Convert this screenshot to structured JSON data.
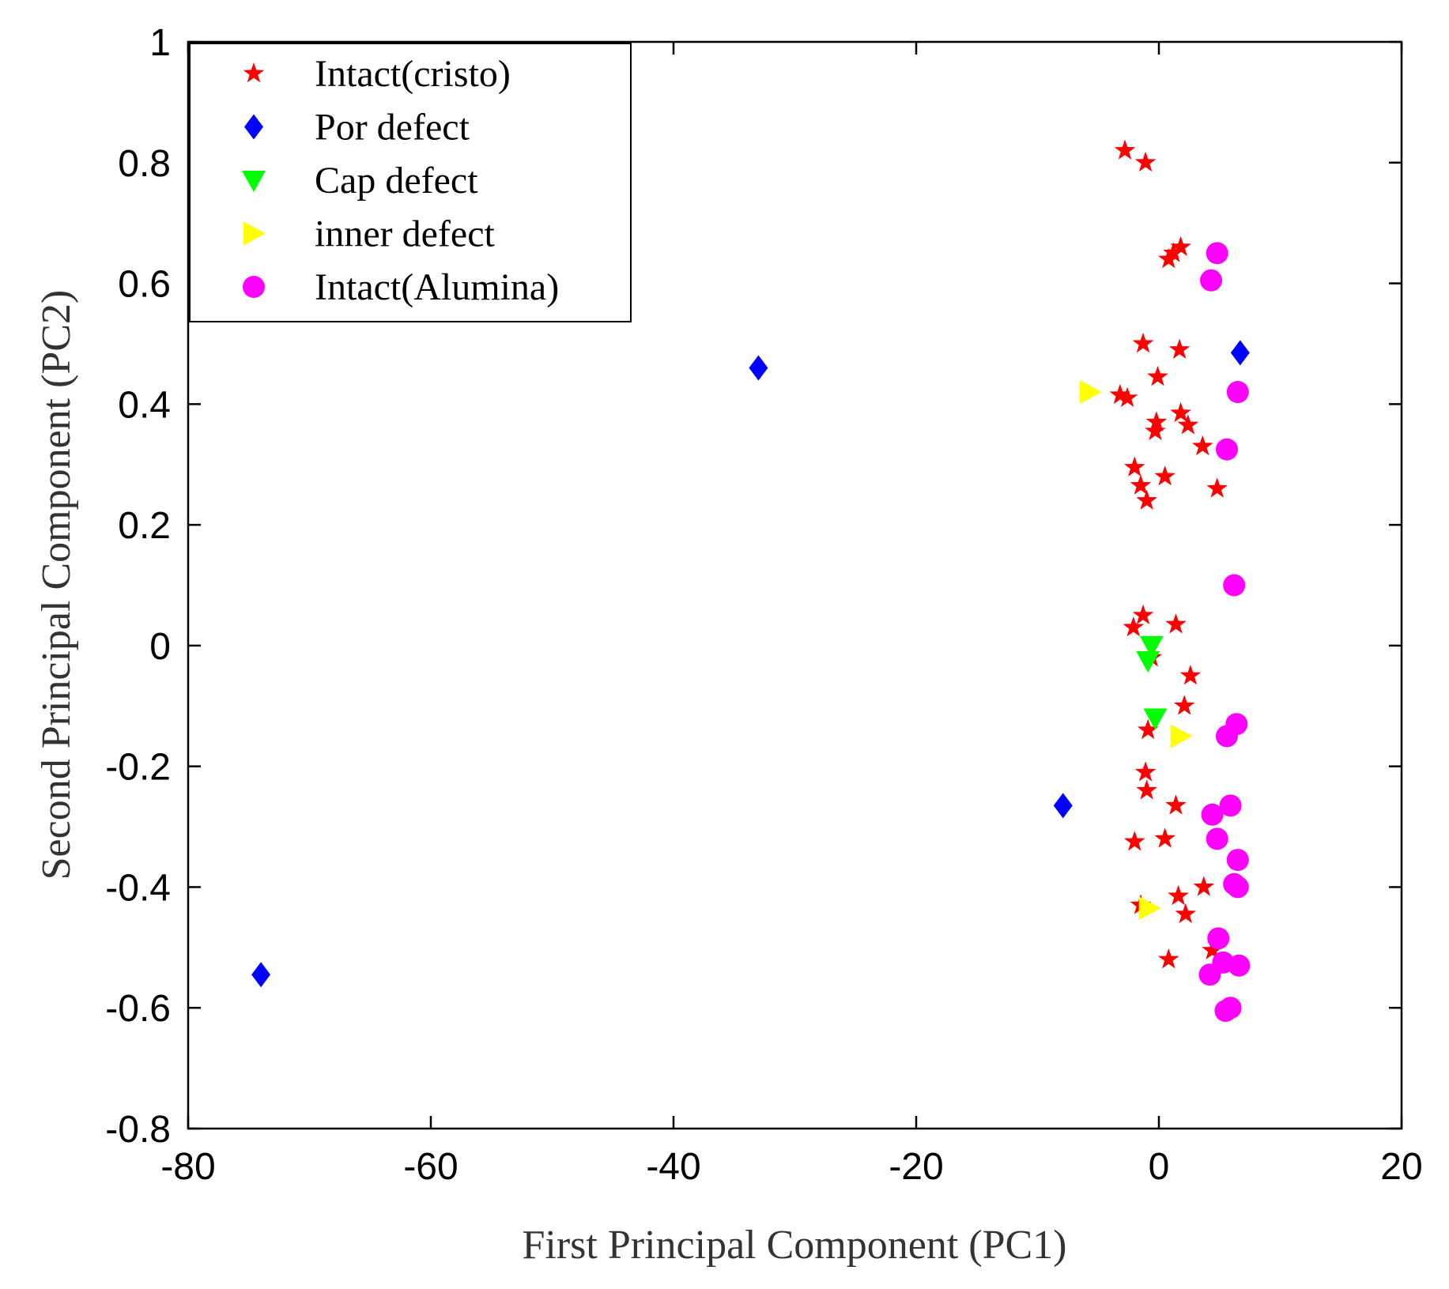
{
  "chart_data": {
    "type": "scatter",
    "title": "",
    "xlabel": "First Principal Component (PC1)",
    "ylabel": "Second Principal Component (PC2)",
    "xlim": [
      -80,
      20
    ],
    "ylim": [
      -0.8,
      1
    ],
    "xticks": [
      -80,
      -60,
      -40,
      -20,
      0,
      20
    ],
    "yticks": [
      -0.8,
      -0.6,
      -0.4,
      -0.2,
      0,
      0.2,
      0.4,
      0.6,
      0.8,
      1
    ],
    "legend_position": "top-left",
    "series": [
      {
        "name": "Intact(cristo)",
        "marker": "star",
        "color": "#ff0000",
        "points": [
          [
            -2.8,
            0.82
          ],
          [
            -1.1,
            0.8
          ],
          [
            1.8,
            0.66
          ],
          [
            1.2,
            0.65
          ],
          [
            0.8,
            0.64
          ],
          [
            -1.3,
            0.5
          ],
          [
            1.7,
            0.49
          ],
          [
            -0.1,
            0.445
          ],
          [
            -3.2,
            0.415
          ],
          [
            -2.6,
            0.41
          ],
          [
            1.8,
            0.385
          ],
          [
            2.4,
            0.365
          ],
          [
            -0.2,
            0.37
          ],
          [
            -0.3,
            0.355
          ],
          [
            3.6,
            0.33
          ],
          [
            -2.0,
            0.295
          ],
          [
            0.5,
            0.28
          ],
          [
            4.8,
            0.26
          ],
          [
            -1.5,
            0.265
          ],
          [
            -1.0,
            0.24
          ],
          [
            -1.3,
            0.05
          ],
          [
            -2.1,
            0.03
          ],
          [
            1.4,
            0.035
          ],
          [
            -0.6,
            -0.02
          ],
          [
            2.6,
            -0.05
          ],
          [
            2.1,
            -0.1
          ],
          [
            -0.9,
            -0.14
          ],
          [
            -1.1,
            -0.21
          ],
          [
            -1.0,
            -0.24
          ],
          [
            1.4,
            -0.265
          ],
          [
            -2.0,
            -0.325
          ],
          [
            0.5,
            -0.32
          ],
          [
            3.7,
            -0.4
          ],
          [
            1.6,
            -0.415
          ],
          [
            -1.5,
            -0.43
          ],
          [
            2.2,
            -0.445
          ],
          [
            4.4,
            -0.505
          ],
          [
            0.8,
            -0.52
          ]
        ]
      },
      {
        "name": "Por defect",
        "marker": "diamond",
        "color": "#0000ff",
        "points": [
          [
            -33,
            0.46
          ],
          [
            6.7,
            0.485
          ],
          [
            -7.9,
            -0.265
          ],
          [
            -74,
            -0.545
          ]
        ]
      },
      {
        "name": "Cap defect",
        "marker": "triangle-down",
        "color": "#00ff00",
        "points": [
          [
            -0.6,
            0.0
          ],
          [
            -0.9,
            -0.025
          ],
          [
            -0.3,
            -0.12
          ]
        ]
      },
      {
        "name": "inner defect",
        "marker": "triangle-right",
        "color": "#ffff00",
        "points": [
          [
            -5.7,
            0.42
          ],
          [
            1.8,
            -0.15
          ],
          [
            -0.8,
            -0.435
          ]
        ]
      },
      {
        "name": "Intact(Alumina)",
        "marker": "circle",
        "color": "#ff00ff",
        "points": [
          [
            4.8,
            0.65
          ],
          [
            4.3,
            0.605
          ],
          [
            6.5,
            0.42
          ],
          [
            5.6,
            0.325
          ],
          [
            6.2,
            0.1
          ],
          [
            6.4,
            -0.13
          ],
          [
            5.6,
            -0.15
          ],
          [
            5.9,
            -0.265
          ],
          [
            4.4,
            -0.28
          ],
          [
            4.8,
            -0.32
          ],
          [
            6.5,
            -0.355
          ],
          [
            6.2,
            -0.395
          ],
          [
            6.5,
            -0.4
          ],
          [
            4.9,
            -0.485
          ],
          [
            5.3,
            -0.525
          ],
          [
            6.6,
            -0.53
          ],
          [
            4.2,
            -0.545
          ],
          [
            5.9,
            -0.6
          ],
          [
            5.5,
            -0.605
          ]
        ]
      }
    ]
  }
}
